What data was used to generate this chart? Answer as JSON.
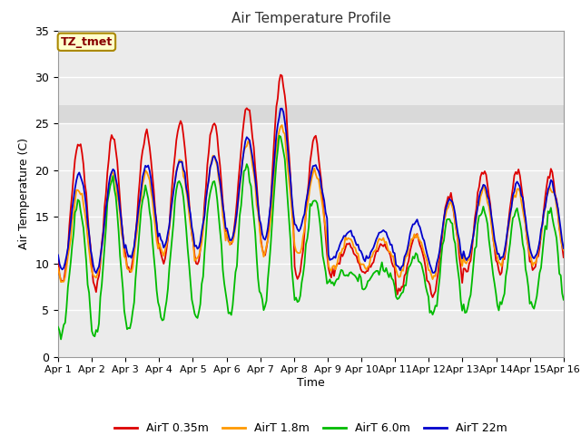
{
  "title": "Air Temperature Profile",
  "xlabel": "Time",
  "ylabel": "Air Temperature (C)",
  "ylim": [
    0,
    35
  ],
  "xlim": [
    0,
    15
  ],
  "background_color": "#ffffff",
  "plot_bg_color": "#ebebeb",
  "grid_color": "#ffffff",
  "legend_labels": [
    "AirT 0.35m",
    "AirT 1.8m",
    "AirT 6.0m",
    "AirT 22m"
  ],
  "legend_colors": [
    "#dd0000",
    "#ff9900",
    "#00bb00",
    "#0000cc"
  ],
  "line_width": 1.3,
  "annotation_text": "TZ_tmet",
  "annotation_color": "#880000",
  "annotation_bg": "#ffffcc",
  "annotation_edge": "#aa8800",
  "xtick_labels": [
    "Apr 1",
    "Apr 2",
    "Apr 3",
    "Apr 4",
    "Apr 5",
    "Apr 6",
    "Apr 7",
    "Apr 8",
    "Apr 9",
    "Apr 10",
    "Apr 11",
    "Apr 12",
    "Apr 13",
    "Apr 14",
    "Apr 15",
    "Apr 16"
  ],
  "ytick_values": [
    0,
    5,
    10,
    15,
    20,
    25,
    30,
    35
  ],
  "shaded_ymin": 25,
  "shaded_ymax": 27,
  "figsize": [
    6.4,
    4.8
  ],
  "dpi": 100
}
